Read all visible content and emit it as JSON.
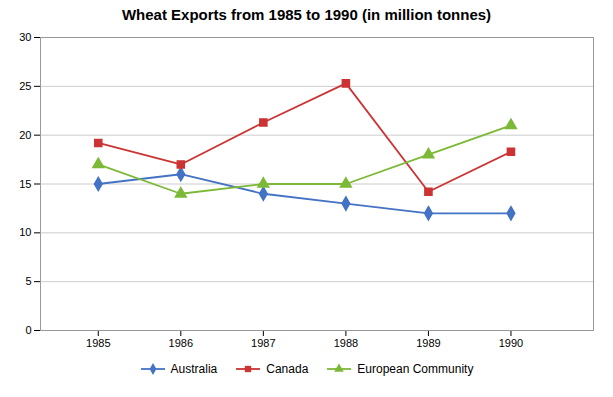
{
  "chart_data": {
    "type": "line",
    "title": "Wheat Exports from 1985 to 1990 (in million tonnes)",
    "x": [
      1985,
      1986,
      1987,
      1988,
      1989,
      1990
    ],
    "series": [
      {
        "name": "Australia",
        "color": "#4472C4",
        "marker": "diamond",
        "values": [
          15.0,
          16.0,
          14.0,
          13.0,
          12.0,
          12.0
        ]
      },
      {
        "name": "Canada",
        "color": "#CC3333",
        "marker": "square",
        "values": [
          19.2,
          17.0,
          21.3,
          25.3,
          14.2,
          18.3
        ]
      },
      {
        "name": "European Community",
        "color": "#7CB936",
        "marker": "triangle",
        "values": [
          17.0,
          14.0,
          15.0,
          15.0,
          18.0,
          21.0
        ]
      }
    ],
    "xlim": [
      1984.3,
      1991.0
    ],
    "xticks": [
      1985,
      1986,
      1987,
      1988,
      1989,
      1990
    ],
    "ylim": [
      0,
      30
    ],
    "yticks": [
      0,
      5,
      10,
      15,
      20,
      25,
      30
    ],
    "grid": true,
    "legend": "bottom"
  }
}
